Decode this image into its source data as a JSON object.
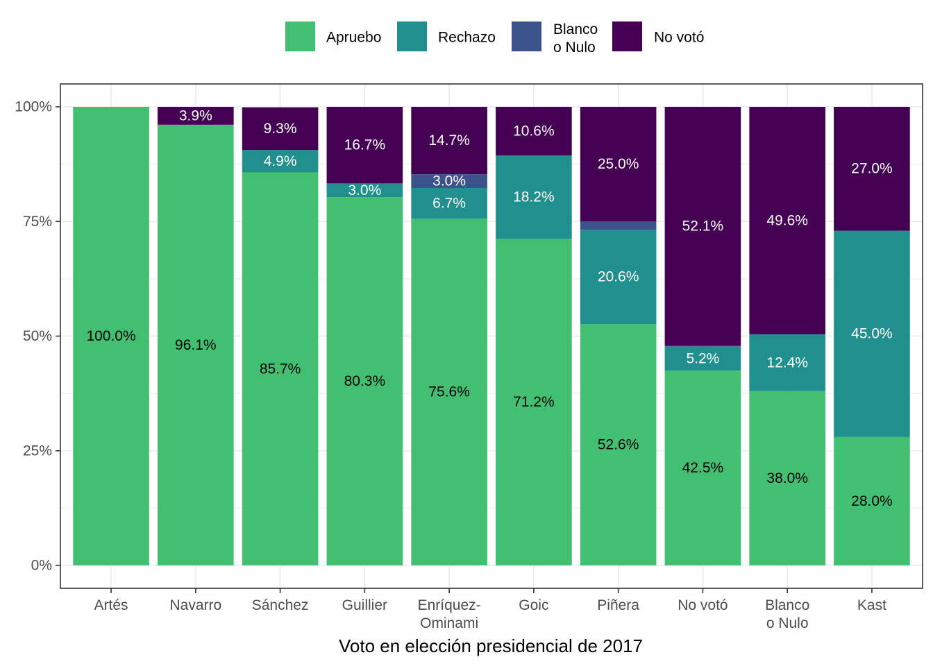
{
  "chart_data": {
    "type": "bar",
    "stacked": true,
    "orientation": "vertical",
    "xlabel": "Voto en elección presidencial de 2017",
    "ylabel": "",
    "ylim": [
      0,
      100
    ],
    "y_ticks": [
      "0%",
      "25%",
      "50%",
      "75%",
      "100%"
    ],
    "y_tick_values": [
      0,
      25,
      50,
      75,
      100
    ],
    "grid": true,
    "legend_position": "top",
    "categories": [
      [
        "Artés"
      ],
      [
        "Navarro"
      ],
      [
        "Sánchez"
      ],
      [
        "Guillier"
      ],
      [
        "Enríquez-",
        "Ominami"
      ],
      [
        "Goic"
      ],
      [
        "Piñera"
      ],
      [
        "No votó"
      ],
      [
        "Blanco",
        "o Nulo"
      ],
      [
        "Kast"
      ]
    ],
    "series": [
      {
        "name": [
          "Apruebo"
        ],
        "color": "#43bf71",
        "label_color": "#000000",
        "values": [
          100.0,
          96.1,
          85.7,
          80.3,
          75.6,
          71.2,
          52.6,
          42.5,
          38.0,
          28.0
        ],
        "labels": [
          "100.0%",
          "96.1%",
          "85.7%",
          "80.3%",
          "75.6%",
          "71.2%",
          "52.6%",
          "42.5%",
          "38.0%",
          "28.0%"
        ]
      },
      {
        "name": [
          "Rechazo"
        ],
        "color": "#218f8d",
        "label_color": "#ffffff",
        "values": [
          0,
          0,
          4.9,
          3.0,
          6.7,
          18.2,
          20.6,
          5.2,
          12.4,
          45.0
        ],
        "labels": [
          "",
          "",
          "4.9%",
          "3.0%",
          "6.7%",
          "18.2%",
          "20.6%",
          "5.2%",
          "12.4%",
          "45.0%"
        ]
      },
      {
        "name": [
          "Blanco",
          "o Nulo"
        ],
        "color": "#3b528b",
        "label_color": "#ffffff",
        "values": [
          0,
          0,
          0,
          0,
          3.0,
          0,
          1.8,
          0.2,
          0,
          0
        ],
        "labels": [
          "",
          "",
          "",
          "",
          "3.0%",
          "",
          "",
          "",
          "",
          ""
        ]
      },
      {
        "name": [
          "No votó"
        ],
        "color": "#440154",
        "label_color": "#ffffff",
        "values": [
          0,
          3.9,
          9.3,
          16.7,
          14.7,
          10.6,
          25.0,
          52.1,
          49.6,
          27.0
        ],
        "labels": [
          "",
          "3.9%",
          "9.3%",
          "16.7%",
          "14.7%",
          "10.6%",
          "25.0%",
          "52.1%",
          "49.6%",
          "27.0%"
        ]
      }
    ]
  }
}
